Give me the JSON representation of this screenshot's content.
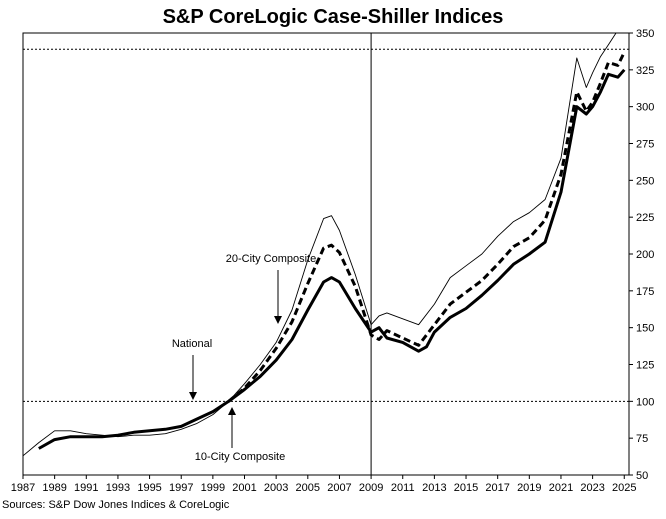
{
  "chart_data": {
    "type": "line",
    "title": "S&P CoreLogic Case-Shiller Indices",
    "source": "Sources:  S&P Dow Jones Indices & CoreLogic",
    "xlim": [
      1987,
      2025.3
    ],
    "ylim": [
      50,
      350
    ],
    "x_ticks": [
      "1987",
      "1989",
      "1991",
      "1993",
      "1995",
      "1997",
      "1999",
      "2001",
      "2003",
      "2005",
      "2007",
      "2009",
      "2011",
      "2013",
      "2015",
      "2017",
      "2019",
      "2021",
      "2023",
      "2025"
    ],
    "y_ticks": [
      "50",
      "75",
      "100",
      "125",
      "150",
      "175",
      "200",
      "225",
      "250",
      "275",
      "300",
      "325",
      "350"
    ],
    "reference_lines": {
      "horizontal": [
        100,
        339
      ],
      "vertical": [
        2009
      ]
    },
    "annotations": [
      {
        "label": "20-City Composite",
        "series": "20-City Composite"
      },
      {
        "label": "National",
        "series": "National"
      },
      {
        "label": "10-City Composite",
        "series": "10-City Composite"
      }
    ],
    "series": [
      {
        "name": "National",
        "style": "thick-solid",
        "color": "#000000",
        "points": [
          [
            1988,
            68
          ],
          [
            1989,
            74
          ],
          [
            1990,
            76
          ],
          [
            1991,
            76
          ],
          [
            1992,
            76
          ],
          [
            1993,
            77
          ],
          [
            1994,
            79
          ],
          [
            1995,
            80
          ],
          [
            1996,
            81
          ],
          [
            1997,
            83
          ],
          [
            1998,
            88
          ],
          [
            1999,
            93
          ],
          [
            2000,
            100
          ],
          [
            2001,
            108
          ],
          [
            2002,
            117
          ],
          [
            2003,
            128
          ],
          [
            2004,
            142
          ],
          [
            2005,
            162
          ],
          [
            2006,
            181
          ],
          [
            2006.5,
            184
          ],
          [
            2007,
            181
          ],
          [
            2008,
            163
          ],
          [
            2009,
            147
          ],
          [
            2009.5,
            150
          ],
          [
            2010,
            143
          ],
          [
            2011,
            140
          ],
          [
            2012,
            134
          ],
          [
            2012.5,
            137
          ],
          [
            2013,
            147
          ],
          [
            2014,
            157
          ],
          [
            2015,
            163
          ],
          [
            2016,
            172
          ],
          [
            2017,
            182
          ],
          [
            2018,
            193
          ],
          [
            2019,
            200
          ],
          [
            2020,
            208
          ],
          [
            2021,
            242
          ],
          [
            2022,
            300
          ],
          [
            2022.6,
            295
          ],
          [
            2023,
            300
          ],
          [
            2023.5,
            310
          ],
          [
            2024,
            322
          ],
          [
            2024.6,
            320
          ],
          [
            2025,
            325
          ]
        ]
      },
      {
        "name": "20-City Composite",
        "style": "thick-dashed",
        "color": "#000000",
        "points": [
          [
            2000,
            100
          ],
          [
            2001,
            109
          ],
          [
            2002,
            121
          ],
          [
            2003,
            136
          ],
          [
            2004,
            154
          ],
          [
            2005,
            180
          ],
          [
            2006,
            204
          ],
          [
            2006.5,
            206
          ],
          [
            2007,
            201
          ],
          [
            2008,
            178
          ],
          [
            2009,
            145
          ],
          [
            2009.5,
            142
          ],
          [
            2010,
            148
          ],
          [
            2011,
            143
          ],
          [
            2012,
            138
          ],
          [
            2013,
            152
          ],
          [
            2014,
            166
          ],
          [
            2015,
            174
          ],
          [
            2016,
            182
          ],
          [
            2017,
            193
          ],
          [
            2018,
            205
          ],
          [
            2019,
            211
          ],
          [
            2020,
            223
          ],
          [
            2021,
            254
          ],
          [
            2022,
            310
          ],
          [
            2022.6,
            297
          ],
          [
            2023,
            303
          ],
          [
            2023.5,
            316
          ],
          [
            2024,
            330
          ],
          [
            2024.6,
            328
          ],
          [
            2025,
            337
          ]
        ]
      },
      {
        "name": "10-City Composite",
        "style": "thin-solid",
        "color": "#000000",
        "points": [
          [
            1987,
            63
          ],
          [
            1988,
            72
          ],
          [
            1989,
            80
          ],
          [
            1990,
            80
          ],
          [
            1991,
            78
          ],
          [
            1992,
            77
          ],
          [
            1993,
            76
          ],
          [
            1994,
            77
          ],
          [
            1995,
            77
          ],
          [
            1996,
            78
          ],
          [
            1997,
            81
          ],
          [
            1998,
            85
          ],
          [
            1999,
            91
          ],
          [
            2000,
            100
          ],
          [
            2001,
            112
          ],
          [
            2002,
            125
          ],
          [
            2003,
            140
          ],
          [
            2004,
            162
          ],
          [
            2005,
            196
          ],
          [
            2006,
            224
          ],
          [
            2006.5,
            226
          ],
          [
            2007,
            216
          ],
          [
            2008,
            186
          ],
          [
            2009,
            152
          ],
          [
            2009.5,
            158
          ],
          [
            2010,
            160
          ],
          [
            2011,
            156
          ],
          [
            2012,
            152
          ],
          [
            2013,
            166
          ],
          [
            2014,
            184
          ],
          [
            2015,
            192
          ],
          [
            2016,
            200
          ],
          [
            2017,
            212
          ],
          [
            2018,
            222
          ],
          [
            2019,
            228
          ],
          [
            2020,
            237
          ],
          [
            2021,
            265
          ],
          [
            2022,
            333
          ],
          [
            2022.6,
            313
          ],
          [
            2023,
            323
          ],
          [
            2023.5,
            334
          ],
          [
            2024,
            342
          ],
          [
            2024.6,
            352
          ]
        ]
      }
    ]
  }
}
